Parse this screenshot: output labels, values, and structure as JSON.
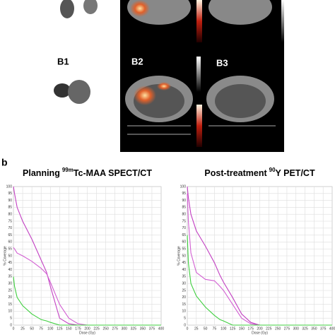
{
  "panel_labels": {
    "b1": "B1",
    "b2": "B2",
    "b3": "B3",
    "b": "b"
  },
  "chart_data": [
    {
      "type": "line",
      "title_prefix": "Planning",
      "title_superscript": "99m",
      "title_suffix": "Tc-MAA SPECT/CT",
      "xlabel": "Dose (Gy)",
      "ylabel": "% Coverage",
      "x": [
        0,
        3,
        10,
        25,
        50,
        75,
        90,
        100,
        125,
        150,
        175,
        200,
        400
      ],
      "series": [
        {
          "color": "#c23fc2",
          "values": [
            100,
            95,
            85,
            75,
            62,
            47,
            38,
            28,
            5,
            1,
            0,
            0,
            0
          ]
        },
        {
          "color": "#d25fd2",
          "values": [
            56,
            55,
            52,
            50,
            46,
            41,
            37,
            31,
            15,
            5,
            1,
            0,
            0
          ]
        },
        {
          "color": "#3fcf3f",
          "values": [
            35,
            28,
            20,
            14,
            8,
            4,
            3,
            2,
            0,
            0,
            0,
            0,
            0
          ]
        }
      ],
      "xlim": [
        0,
        400
      ],
      "ylim": [
        0,
        100
      ],
      "xticks": [
        0,
        25,
        50,
        75,
        100,
        125,
        150,
        175,
        200,
        225,
        250,
        275,
        300,
        325,
        350,
        375,
        400
      ],
      "yticks": [
        0,
        5,
        10,
        15,
        20,
        25,
        30,
        35,
        40,
        45,
        50,
        55,
        60,
        65,
        70,
        75,
        80,
        85,
        90,
        95,
        100
      ],
      "grid": true
    },
    {
      "type": "line",
      "title_prefix": "Post-treatment",
      "title_superscript": "90",
      "title_suffix": "Y PET/CT",
      "xlabel": "Dose (Gy)",
      "ylabel": "% Coverage",
      "x": [
        0,
        3,
        10,
        25,
        50,
        75,
        90,
        100,
        125,
        150,
        175,
        200,
        400
      ],
      "series": [
        {
          "color": "#c23fc2",
          "values": [
            100,
            92,
            80,
            68,
            57,
            45,
            36,
            31,
            20,
            8,
            2,
            0,
            0
          ]
        },
        {
          "color": "#d25fd2",
          "values": [
            95,
            75,
            52,
            38,
            33,
            32,
            28,
            25,
            15,
            5,
            1,
            0,
            0
          ]
        },
        {
          "color": "#3fcf3f",
          "values": [
            65,
            45,
            30,
            21,
            13,
            7,
            4,
            3,
            0,
            0,
            0,
            0,
            0
          ]
        }
      ],
      "xlim": [
        0,
        400
      ],
      "ylim": [
        0,
        100
      ],
      "xticks": [
        0,
        25,
        50,
        75,
        100,
        125,
        150,
        175,
        200,
        225,
        250,
        275,
        300,
        325,
        350,
        375,
        400
      ],
      "yticks": [
        0,
        5,
        10,
        15,
        20,
        25,
        30,
        35,
        40,
        45,
        50,
        55,
        60,
        65,
        70,
        75,
        80,
        85,
        90,
        95,
        100
      ],
      "grid": true
    }
  ]
}
